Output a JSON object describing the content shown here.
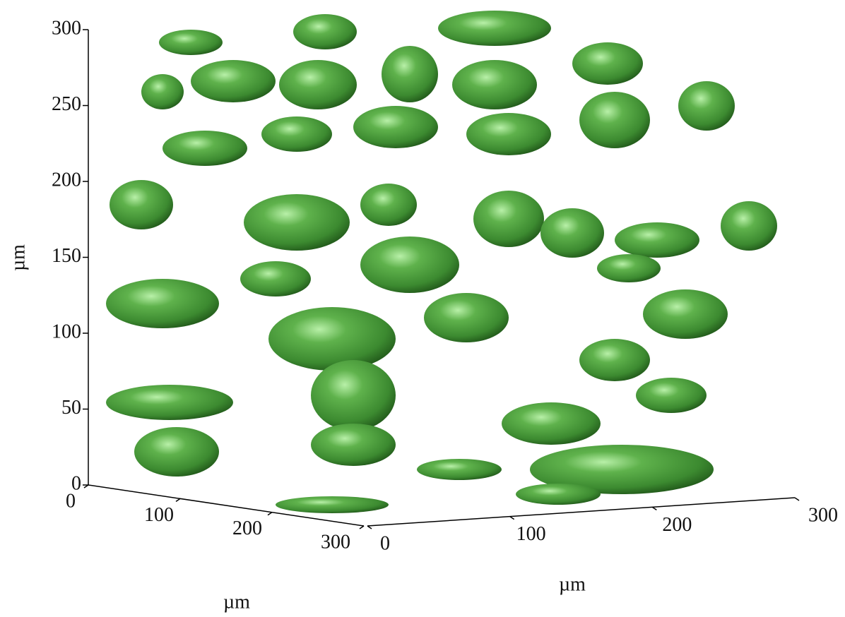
{
  "chart_data": {
    "type": "isosurface3d",
    "z_label": "µm",
    "x_label": "µm",
    "y_label": "µm",
    "zlim": [
      0,
      300
    ],
    "zticks": [
      0,
      50,
      100,
      150,
      200,
      250,
      300
    ],
    "xlim": [
      0,
      300
    ],
    "xticks": [
      0,
      100,
      200,
      300
    ],
    "ylim": [
      0,
      300
    ],
    "yticks": [
      0,
      100,
      200,
      300
    ],
    "color": "#4f9e3f"
  }
}
